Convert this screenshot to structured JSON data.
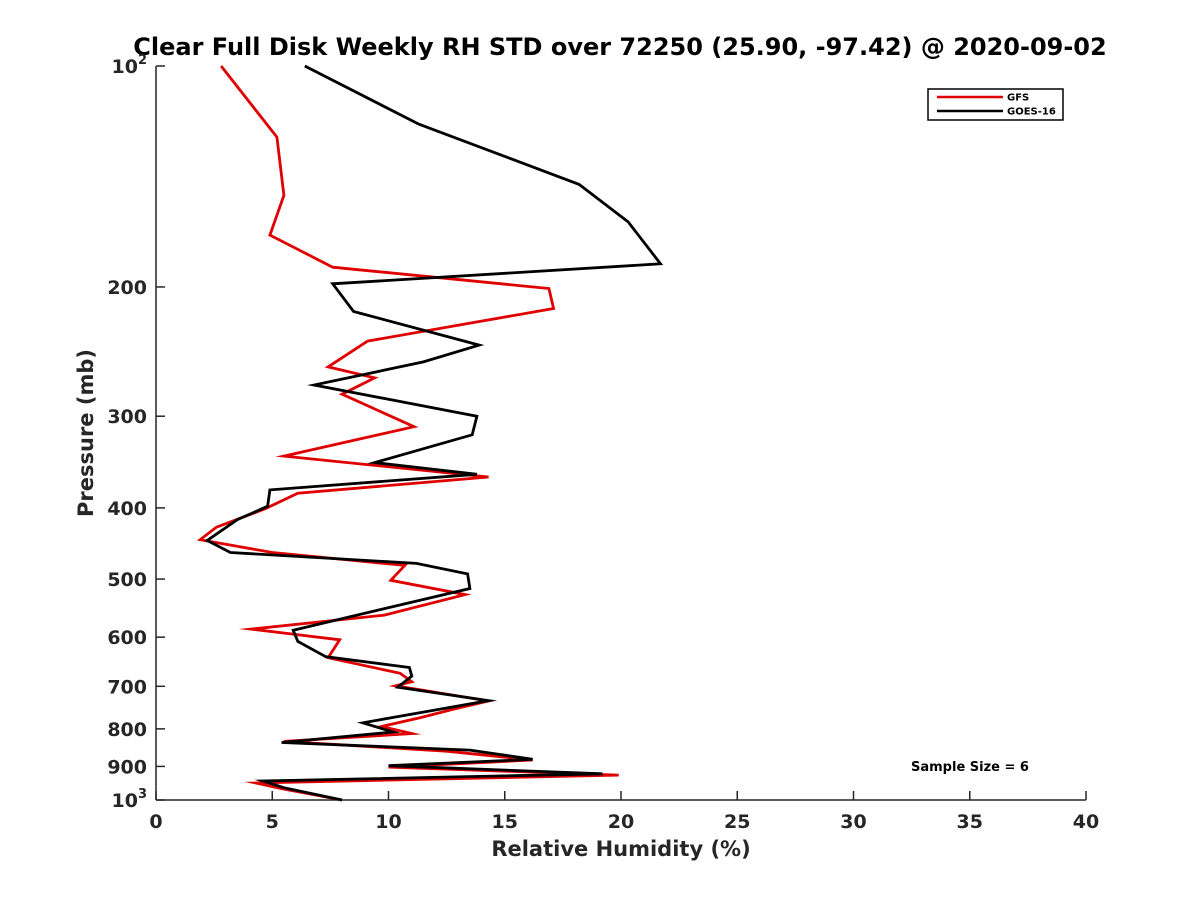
{
  "chart_data": {
    "type": "line",
    "title": "Clear Full Disk Weekly RH STD over 72250 (25.90, -97.42) @ 2020-09-02",
    "xlabel": "Relative Humidity (%)",
    "ylabel": "Pressure (mb)",
    "xlim": [
      0,
      40
    ],
    "ylim": [
      100,
      1000
    ],
    "yscale": "log",
    "y_reversed": true,
    "grid": false,
    "legend_position": "top-right",
    "x_ticks": [
      "0",
      "5",
      "10",
      "15",
      "20",
      "25",
      "30",
      "35",
      "40"
    ],
    "y_ticks": [
      {
        "value": 100,
        "base": "10",
        "exp": "2"
      },
      {
        "value": 200,
        "label": "200"
      },
      {
        "value": 300,
        "label": "300"
      },
      {
        "value": 400,
        "label": "400"
      },
      {
        "value": 500,
        "label": "500"
      },
      {
        "value": 600,
        "label": "600"
      },
      {
        "value": 700,
        "label": "700"
      },
      {
        "value": 800,
        "label": "800"
      },
      {
        "value": 900,
        "label": "900"
      },
      {
        "value": 1000,
        "base": "10",
        "exp": "3"
      }
    ],
    "annotation": "Sample Size = 6",
    "series": [
      {
        "name": "GFS",
        "color": "#e00000",
        "points": [
          [
            2.8,
            100
          ],
          [
            5.2,
            125
          ],
          [
            5.5,
            150
          ],
          [
            4.9,
            170
          ],
          [
            7.6,
            188
          ],
          [
            16.9,
            201
          ],
          [
            17.1,
            214
          ],
          [
            9.1,
            237
          ],
          [
            7.4,
            257
          ],
          [
            9.4,
            266
          ],
          [
            8.0,
            280
          ],
          [
            11.1,
            310
          ],
          [
            5.5,
            340
          ],
          [
            14.3,
            363
          ],
          [
            6.1,
            382
          ],
          [
            4.7,
            401
          ],
          [
            2.6,
            425
          ],
          [
            1.9,
            442
          ],
          [
            5.0,
            460
          ],
          [
            10.7,
            479
          ],
          [
            10.1,
            502
          ],
          [
            13.3,
            525
          ],
          [
            9.8,
            560
          ],
          [
            4.1,
            585
          ],
          [
            7.9,
            605
          ],
          [
            7.4,
            640
          ],
          [
            10.5,
            672
          ],
          [
            11.0,
            690
          ],
          [
            10.3,
            699
          ],
          [
            14.3,
            733
          ],
          [
            12.8,
            752
          ],
          [
            11.4,
            772
          ],
          [
            9.7,
            794
          ],
          [
            11.0,
            812
          ],
          [
            5.5,
            832
          ],
          [
            12.5,
            858
          ],
          [
            16.2,
            882
          ],
          [
            10.0,
            902
          ],
          [
            19.9,
            925
          ],
          [
            4.3,
            948
          ],
          [
            5.4,
            965
          ],
          [
            8.0,
            1000
          ]
        ]
      },
      {
        "name": "GOES-16",
        "color": "#000000",
        "points": [
          [
            6.4,
            100
          ],
          [
            11.3,
            120
          ],
          [
            18.2,
            145
          ],
          [
            20.3,
            163
          ],
          [
            21.7,
            186
          ],
          [
            7.6,
            198
          ],
          [
            8.5,
            216
          ],
          [
            13.9,
            240
          ],
          [
            11.5,
            253
          ],
          [
            6.8,
            272
          ],
          [
            13.8,
            300
          ],
          [
            13.6,
            318
          ],
          [
            9.4,
            347
          ],
          [
            13.8,
            360
          ],
          [
            4.9,
            378
          ],
          [
            4.8,
            398
          ],
          [
            3.5,
            415
          ],
          [
            2.2,
            443
          ],
          [
            3.2,
            460
          ],
          [
            11.2,
            476
          ],
          [
            13.4,
            492
          ],
          [
            13.5,
            515
          ],
          [
            5.9,
            587
          ],
          [
            6.1,
            608
          ],
          [
            7.3,
            638
          ],
          [
            10.9,
            660
          ],
          [
            11.0,
            678
          ],
          [
            10.4,
            702
          ],
          [
            14.3,
            732
          ],
          [
            11.4,
            760
          ],
          [
            8.9,
            785
          ],
          [
            10.2,
            808
          ],
          [
            5.4,
            835
          ],
          [
            13.5,
            855
          ],
          [
            16.2,
            880
          ],
          [
            10.0,
            898
          ],
          [
            19.2,
            921
          ],
          [
            4.6,
            942
          ],
          [
            5.5,
            962
          ],
          [
            8.0,
            1000
          ]
        ]
      }
    ]
  }
}
